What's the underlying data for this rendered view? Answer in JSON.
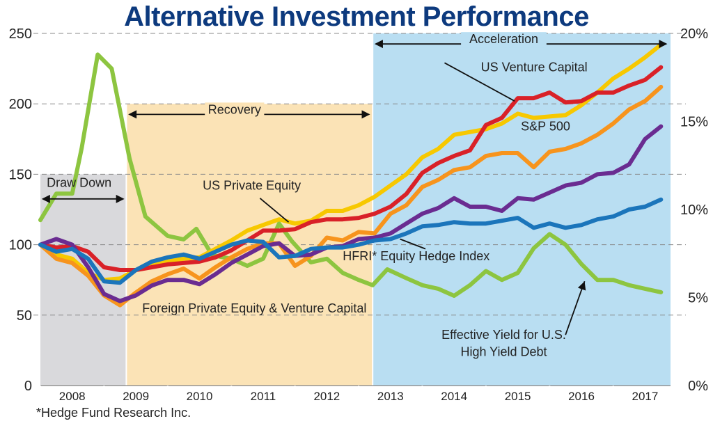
{
  "title": "Alternative Investment Performance",
  "footnote": "*Hedge Fund Research Inc.",
  "chart_data": {
    "type": "line",
    "title": "Alternative Investment Performance",
    "x_start": 2007.5,
    "x_end": 2017.4,
    "xticks": [
      "2008",
      "2009",
      "2010",
      "2011",
      "2012",
      "2013",
      "2014",
      "2015",
      "2016",
      "2017"
    ],
    "ylim": [
      0,
      250
    ],
    "yticks": [
      0,
      50,
      100,
      150,
      200,
      250
    ],
    "y2lim": [
      0,
      20
    ],
    "y2ticks": [
      "0%",
      "5%",
      "10%",
      "15%",
      "20%"
    ],
    "grid": "dashed horizontal",
    "regions": [
      {
        "name": "Draw Down",
        "x0": 2007.5,
        "x1": 2008.85,
        "color": "#d9d9dc",
        "label_y": 142
      },
      {
        "name": "Recovery",
        "x0": 2008.85,
        "x1": 2012.72,
        "ymax": 200,
        "color": "#fbe3b6",
        "label_y": 192
      },
      {
        "name": "Acceleration",
        "x0": 2012.72,
        "x1": 2017.4,
        "color": "#b9def2",
        "label_y": 242
      }
    ],
    "series": [
      {
        "name": "US Private Equity",
        "color": "#f7c800",
        "points": [
          [
            2007.5,
            100
          ],
          [
            2007.75,
            93
          ],
          [
            2008,
            90
          ],
          [
            2008.25,
            80
          ],
          [
            2008.5,
            75
          ],
          [
            2008.75,
            76
          ],
          [
            2009,
            82
          ],
          [
            2009.25,
            86
          ],
          [
            2009.5,
            88
          ],
          [
            2009.75,
            90
          ],
          [
            2010,
            91
          ],
          [
            2010.25,
            97
          ],
          [
            2010.5,
            103
          ],
          [
            2010.75,
            110
          ],
          [
            2011,
            114
          ],
          [
            2011.25,
            118
          ],
          [
            2011.5,
            115
          ],
          [
            2011.75,
            117
          ],
          [
            2012,
            124
          ],
          [
            2012.25,
            124
          ],
          [
            2012.5,
            128
          ],
          [
            2012.75,
            134
          ],
          [
            2013,
            142
          ],
          [
            2013.25,
            150
          ],
          [
            2013.5,
            162
          ],
          [
            2013.75,
            168
          ],
          [
            2014,
            178
          ],
          [
            2014.25,
            180
          ],
          [
            2014.5,
            182
          ],
          [
            2014.75,
            186
          ],
          [
            2015,
            193
          ],
          [
            2015.25,
            190
          ],
          [
            2015.5,
            191
          ],
          [
            2015.75,
            192
          ],
          [
            2016,
            199
          ],
          [
            2016.25,
            208
          ],
          [
            2016.5,
            218
          ],
          [
            2016.75,
            225
          ],
          [
            2017,
            233
          ],
          [
            2017.25,
            242
          ]
        ]
      },
      {
        "name": "S&P 500",
        "color": "#f7941d",
        "points": [
          [
            2007.5,
            100
          ],
          [
            2007.75,
            90
          ],
          [
            2008,
            87
          ],
          [
            2008.25,
            78
          ],
          [
            2008.5,
            64
          ],
          [
            2008.75,
            57
          ],
          [
            2009,
            66
          ],
          [
            2009.25,
            74
          ],
          [
            2009.5,
            79
          ],
          [
            2009.75,
            83
          ],
          [
            2010,
            76
          ],
          [
            2010.25,
            84
          ],
          [
            2010.5,
            91
          ],
          [
            2010.75,
            97
          ],
          [
            2011,
            101
          ],
          [
            2011.25,
            101
          ],
          [
            2011.5,
            85
          ],
          [
            2011.75,
            92
          ],
          [
            2012,
            105
          ],
          [
            2012.25,
            103
          ],
          [
            2012.5,
            109
          ],
          [
            2012.75,
            108
          ],
          [
            2013,
            122
          ],
          [
            2013.25,
            128
          ],
          [
            2013.5,
            141
          ],
          [
            2013.75,
            146
          ],
          [
            2014,
            153
          ],
          [
            2014.25,
            155
          ],
          [
            2014.5,
            163
          ],
          [
            2014.75,
            165
          ],
          [
            2015,
            165
          ],
          [
            2015.25,
            155
          ],
          [
            2015.5,
            166
          ],
          [
            2015.75,
            168
          ],
          [
            2016,
            172
          ],
          [
            2016.25,
            178
          ],
          [
            2016.5,
            186
          ],
          [
            2016.75,
            196
          ],
          [
            2017,
            202
          ],
          [
            2017.25,
            212
          ]
        ]
      },
      {
        "name": "US Venture Capital",
        "color": "#d92128",
        "points": [
          [
            2007.5,
            100
          ],
          [
            2007.75,
            98
          ],
          [
            2008,
            99
          ],
          [
            2008.25,
            95
          ],
          [
            2008.5,
            84
          ],
          [
            2008.75,
            82
          ],
          [
            2009,
            82
          ],
          [
            2009.25,
            84
          ],
          [
            2009.5,
            86
          ],
          [
            2009.75,
            87
          ],
          [
            2010,
            88
          ],
          [
            2010.25,
            91
          ],
          [
            2010.5,
            96
          ],
          [
            2010.75,
            103
          ],
          [
            2011,
            110
          ],
          [
            2011.25,
            110
          ],
          [
            2011.5,
            111
          ],
          [
            2011.75,
            116
          ],
          [
            2012,
            118
          ],
          [
            2012.25,
            118
          ],
          [
            2012.5,
            119
          ],
          [
            2012.75,
            122
          ],
          [
            2013,
            127
          ],
          [
            2013.25,
            136
          ],
          [
            2013.5,
            151
          ],
          [
            2013.75,
            158
          ],
          [
            2014,
            163
          ],
          [
            2014.25,
            167
          ],
          [
            2014.5,
            185
          ],
          [
            2014.75,
            190
          ],
          [
            2015,
            204
          ],
          [
            2015.25,
            204
          ],
          [
            2015.5,
            208
          ],
          [
            2015.75,
            201
          ],
          [
            2016,
            202
          ],
          [
            2016.25,
            208
          ],
          [
            2016.5,
            208
          ],
          [
            2016.75,
            213
          ],
          [
            2017,
            217
          ],
          [
            2017.25,
            226
          ]
        ]
      },
      {
        "name": "Foreign Private Equity & Venture Capital",
        "color": "#6a2c91",
        "points": [
          [
            2007.5,
            100
          ],
          [
            2007.75,
            104
          ],
          [
            2008,
            100
          ],
          [
            2008.25,
            84
          ],
          [
            2008.5,
            65
          ],
          [
            2008.75,
            60
          ],
          [
            2009,
            64
          ],
          [
            2009.25,
            71
          ],
          [
            2009.5,
            75
          ],
          [
            2009.75,
            75
          ],
          [
            2010,
            72
          ],
          [
            2010.25,
            79
          ],
          [
            2010.5,
            87
          ],
          [
            2010.75,
            93
          ],
          [
            2011,
            99
          ],
          [
            2011.25,
            101
          ],
          [
            2011.5,
            92
          ],
          [
            2011.75,
            93
          ],
          [
            2012,
            98
          ],
          [
            2012.25,
            99
          ],
          [
            2012.5,
            104
          ],
          [
            2012.75,
            105
          ],
          [
            2013,
            108
          ],
          [
            2013.25,
            115
          ],
          [
            2013.5,
            122
          ],
          [
            2013.75,
            126
          ],
          [
            2014,
            133
          ],
          [
            2014.25,
            127
          ],
          [
            2014.5,
            127
          ],
          [
            2014.75,
            124
          ],
          [
            2015,
            133
          ],
          [
            2015.25,
            132
          ],
          [
            2015.5,
            137
          ],
          [
            2015.75,
            142
          ],
          [
            2016,
            144
          ],
          [
            2016.25,
            150
          ],
          [
            2016.5,
            151
          ],
          [
            2016.75,
            157
          ],
          [
            2017,
            175
          ],
          [
            2017.25,
            184
          ]
        ]
      },
      {
        "name": "HFRI* Equity Hedge Index",
        "color": "#1b75bb",
        "points": [
          [
            2007.5,
            100
          ],
          [
            2007.75,
            95
          ],
          [
            2008,
            97
          ],
          [
            2008.25,
            90
          ],
          [
            2008.5,
            74
          ],
          [
            2008.75,
            73
          ],
          [
            2009,
            82
          ],
          [
            2009.25,
            88
          ],
          [
            2009.5,
            91
          ],
          [
            2009.75,
            93
          ],
          [
            2010,
            90
          ],
          [
            2010.25,
            95
          ],
          [
            2010.5,
            100
          ],
          [
            2010.75,
            103
          ],
          [
            2011,
            102
          ],
          [
            2011.25,
            91
          ],
          [
            2011.5,
            92
          ],
          [
            2011.75,
            97
          ],
          [
            2012,
            98
          ],
          [
            2012.25,
            98
          ],
          [
            2012.5,
            100
          ],
          [
            2012.75,
            103
          ],
          [
            2013,
            104
          ],
          [
            2013.25,
            108
          ],
          [
            2013.5,
            113
          ],
          [
            2013.75,
            114
          ],
          [
            2014,
            116
          ],
          [
            2014.25,
            115
          ],
          [
            2014.5,
            115
          ],
          [
            2014.75,
            117
          ],
          [
            2015,
            119
          ],
          [
            2015.25,
            112
          ],
          [
            2015.5,
            115
          ],
          [
            2015.75,
            112
          ],
          [
            2016,
            114
          ],
          [
            2016.25,
            118
          ],
          [
            2016.5,
            120
          ],
          [
            2016.75,
            125
          ],
          [
            2017,
            127
          ],
          [
            2017.25,
            132
          ]
        ]
      },
      {
        "name": "Effective Yield for U.S. High Yield Debt",
        "color": "#8dc540",
        "axis": "right",
        "points": [
          [
            2007.5,
            9.4
          ],
          [
            2007.75,
            10.9
          ],
          [
            2008,
            10.9
          ],
          [
            2008.15,
            13.5
          ],
          [
            2008.4,
            18.8
          ],
          [
            2008.62,
            18.0
          ],
          [
            2008.9,
            12.9
          ],
          [
            2009.15,
            9.6
          ],
          [
            2009.5,
            8.5
          ],
          [
            2009.75,
            8.3
          ],
          [
            2009.95,
            8.9
          ],
          [
            2010.2,
            7.4
          ],
          [
            2010.5,
            7.2
          ],
          [
            2010.75,
            6.8
          ],
          [
            2011,
            7.2
          ],
          [
            2011.25,
            9.2
          ],
          [
            2011.45,
            8.2
          ],
          [
            2011.75,
            7.0
          ],
          [
            2012,
            7.2
          ],
          [
            2012.25,
            6.4
          ],
          [
            2012.5,
            6.0
          ],
          [
            2012.72,
            5.7
          ],
          [
            2012.95,
            6.6
          ],
          [
            2013.25,
            6.1
          ],
          [
            2013.5,
            5.7
          ],
          [
            2013.75,
            5.5
          ],
          [
            2014,
            5.1
          ],
          [
            2014.25,
            5.7
          ],
          [
            2014.5,
            6.5
          ],
          [
            2014.75,
            6.0
          ],
          [
            2015,
            6.4
          ],
          [
            2015.25,
            7.8
          ],
          [
            2015.5,
            8.6
          ],
          [
            2015.75,
            8.0
          ],
          [
            2016,
            6.9
          ],
          [
            2016.25,
            6.0
          ],
          [
            2016.5,
            6.0
          ],
          [
            2016.75,
            5.7
          ],
          [
            2017,
            5.5
          ],
          [
            2017.25,
            5.3
          ]
        ]
      }
    ],
    "annotations": [
      {
        "text": "Draw Down",
        "series": "",
        "x": 2007.6,
        "y": 141
      },
      {
        "text": "Recovery",
        "series": "",
        "x": 2010.55,
        "y": 193
      },
      {
        "text": "Acceleration",
        "series": "",
        "x": 2014.78,
        "y": 243
      },
      {
        "text": "US Venture Capital",
        "series": "US Venture Capital",
        "x": 2014.42,
        "y": 223
      },
      {
        "text": "S&P 500",
        "series": "S&P 500",
        "x": 2015.05,
        "y": 181
      },
      {
        "text": "US Private Equity",
        "series": "US Private Equity",
        "x": 2010.05,
        "y": 139
      },
      {
        "text": "HFRI* Equity Hedge Index",
        "series": "HFRI* Equity Hedge Index",
        "x": 2012.25,
        "y": 89
      },
      {
        "text": "Foreign Private Equity & Venture Capital",
        "series": "Foreign Private Equity & Venture Capital",
        "x": 2009.1,
        "y": 52
      },
      {
        "text": "Effective Yield for U.S.",
        "series": "Effective Yield for U.S. High Yield Debt",
        "x": 2014.78,
        "y": 33
      },
      {
        "text": "High Yield Debt",
        "series": "Effective Yield for U.S. High Yield Debt",
        "x": 2014.78,
        "y": 21
      }
    ]
  }
}
